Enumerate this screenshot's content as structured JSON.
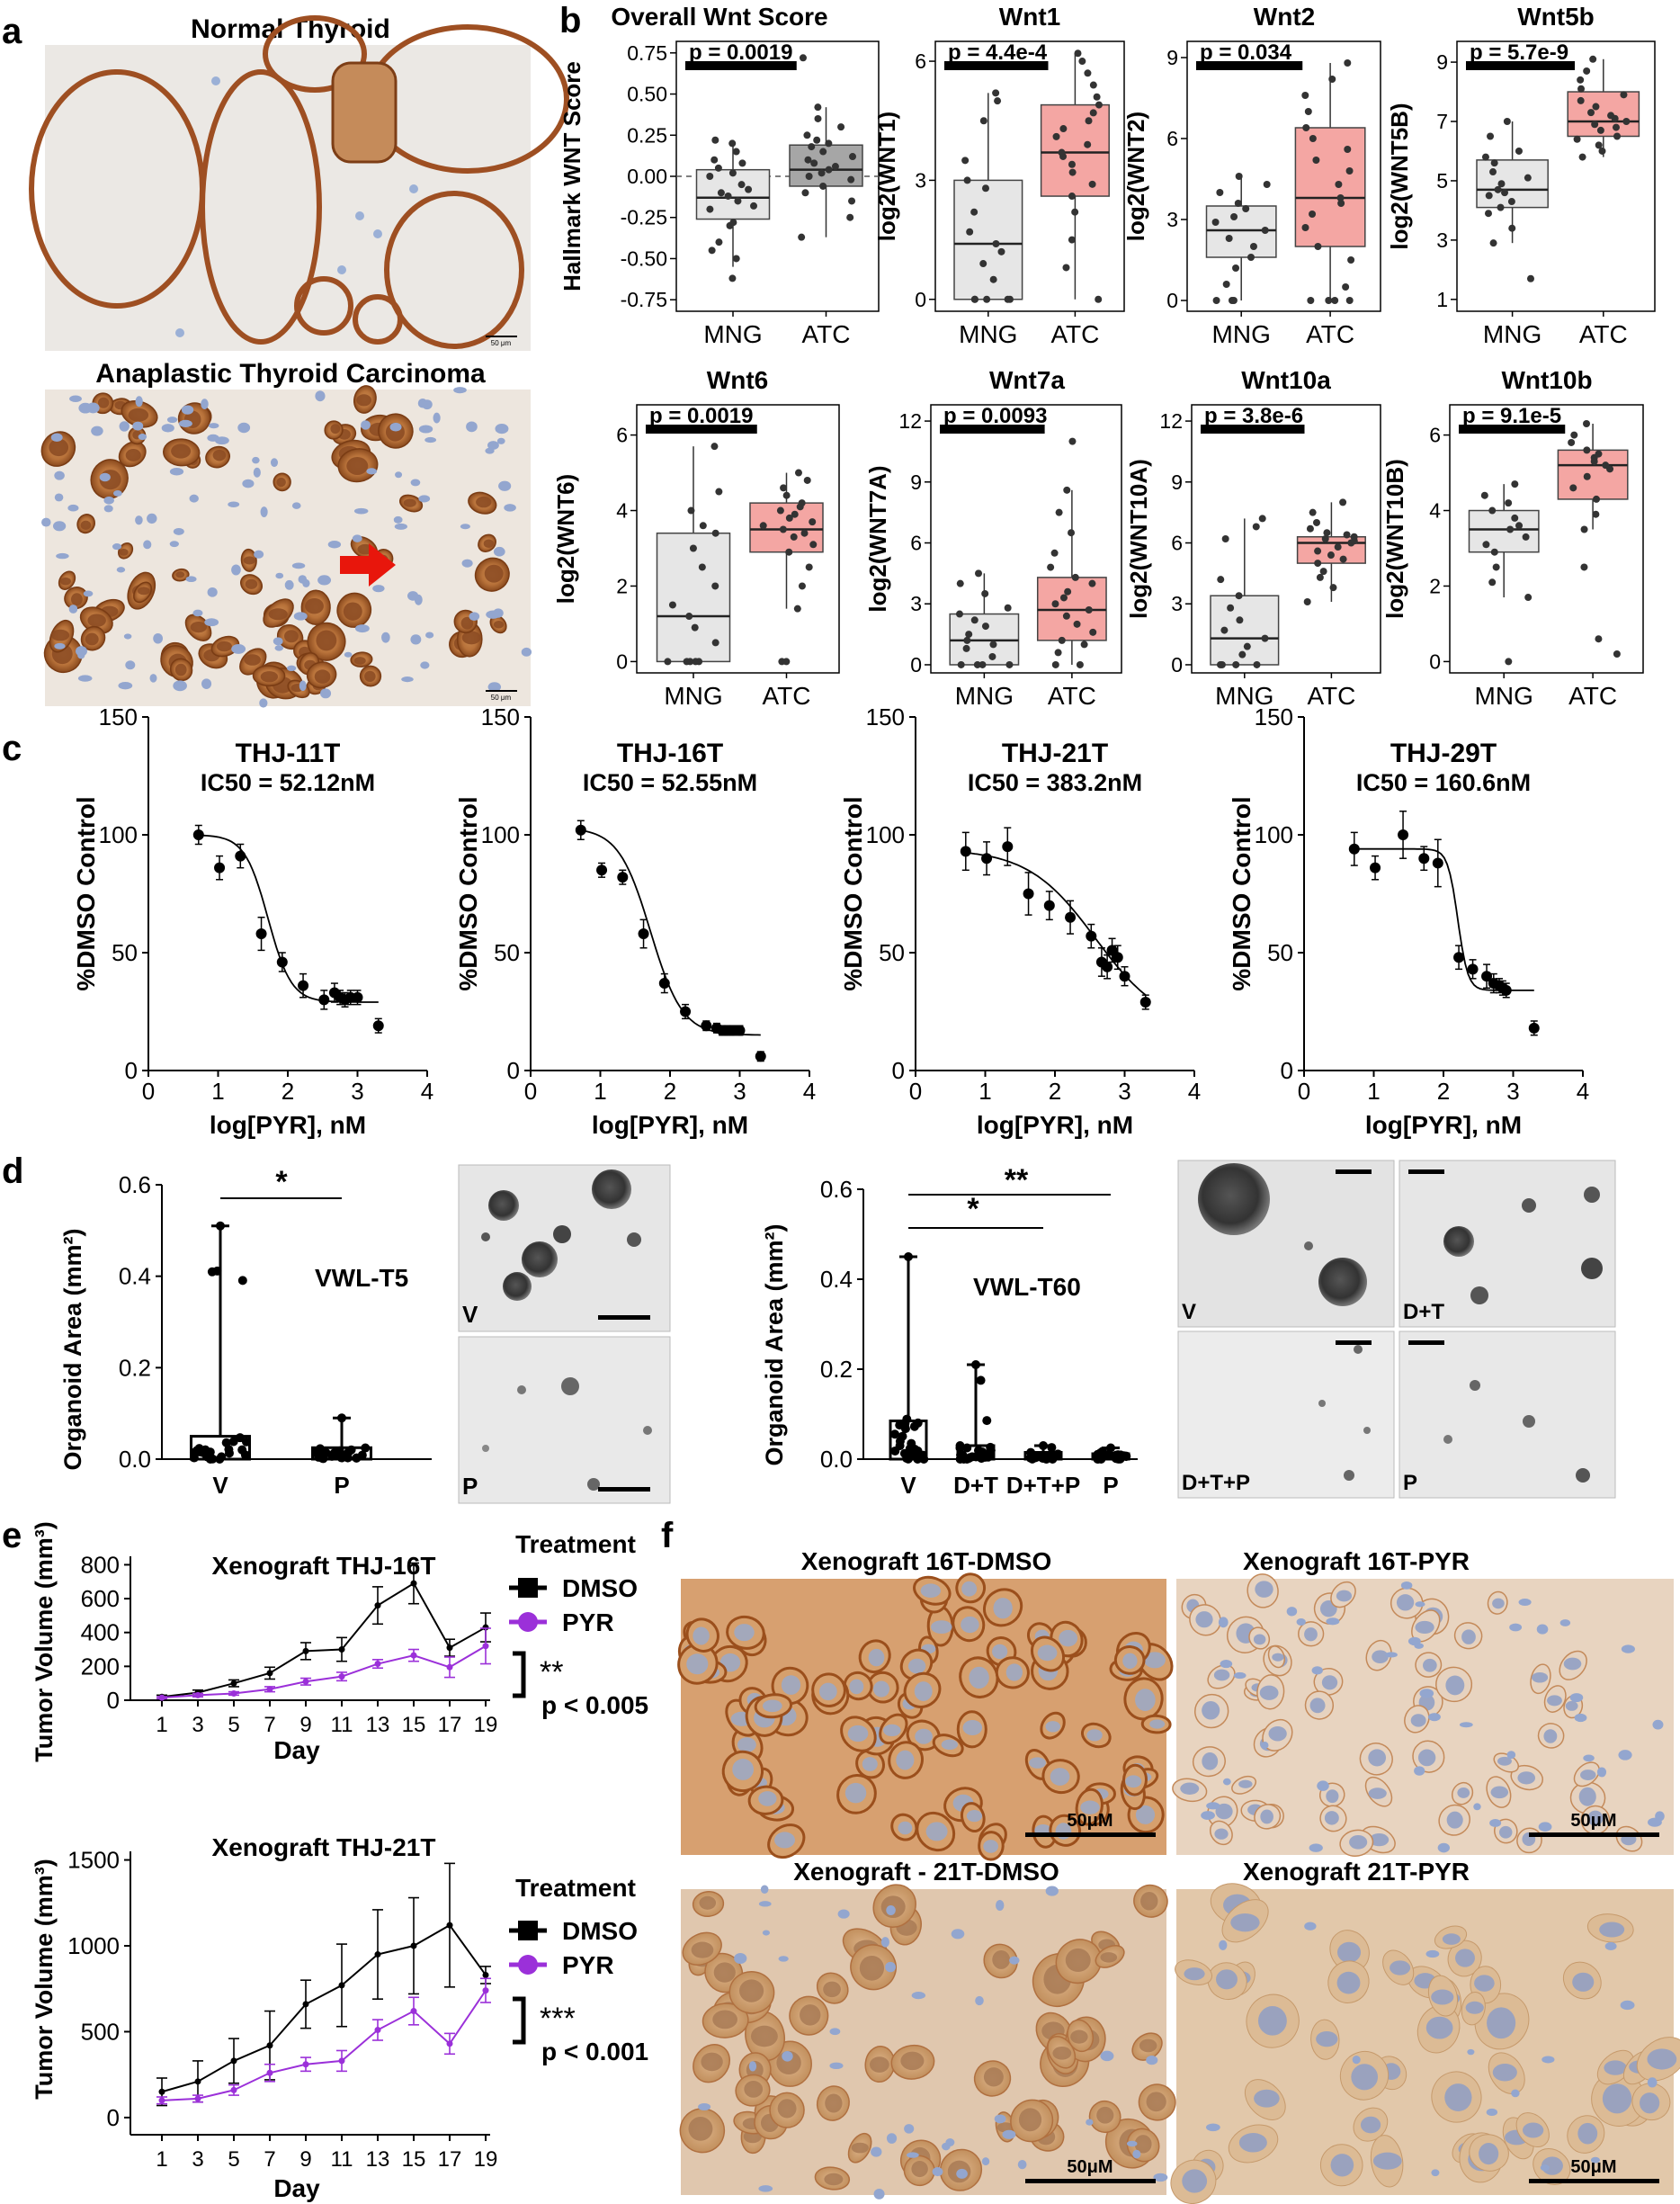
{
  "panels": {
    "a": "a",
    "b": "b",
    "c": "c",
    "d": "d",
    "e": "e",
    "f": "f"
  },
  "panel_a": {
    "top_title": "Normal Thyroid",
    "bottom_title": "Anaplastic Thyroid Carcinoma",
    "scale_top": "50 μm",
    "scale_bottom": "50 μm",
    "colors": {
      "stain": "#a0522d",
      "background": "#ede9e4",
      "nuclei": "#8fa2c8",
      "arrow": "#e8160c"
    }
  },
  "panel_b": {
    "groups": [
      "MNG",
      "ATC"
    ],
    "colors": {
      "mng_box": "#e6e6e6",
      "atc_box": "#f4a6a3",
      "overall_atc_box": "#a6a6a6",
      "title_red": "#c00000"
    }
  },
  "panel_c": {
    "xlabel": "log[PYR], nM",
    "ylabel": "%DMSO Control"
  },
  "panel_d": {
    "ylabel": "Organoid Area (mm²)",
    "left_label": "VWL-T5",
    "right_label": "VWL-T60",
    "left_categories": [
      "V",
      "P"
    ],
    "right_categories": [
      "V",
      "D+T",
      "D+T+P",
      "P"
    ],
    "sig_left": "*",
    "sig_right_1": "*",
    "sig_right_2": "**",
    "left_image_labels": [
      "V",
      "P"
    ],
    "right_image_labels": [
      "V",
      "D+T",
      "D+T+P",
      "P"
    ]
  },
  "panel_e": {
    "ylabel": "Tumor Volume (mm³)",
    "xlabel": "Day",
    "legend_title": "Treatment",
    "legend_items": [
      "DMSO",
      "PYR"
    ],
    "colors": {
      "DMSO": "#000000",
      "PYR": "#9b30d9"
    },
    "plot1": {
      "title": "Xenograft THJ-16T",
      "sig": "**",
      "p": "p < 0.005"
    },
    "plot2": {
      "title": "Xenograft THJ-21T",
      "sig": "***",
      "p": "p < 0.001"
    }
  },
  "panel_f": {
    "titles": [
      "Xenograft 16T-DMSO",
      "Xenograft 16T-PYR",
      "Xenograft - 21T-DMSO",
      "Xenograft 21T-PYR"
    ],
    "scale": "50μM"
  },
  "chart_data": [
    {
      "type": "box",
      "title": "Overall Wnt Score",
      "ylabel": "Hallmark WNT Score",
      "categories": [
        "MNG",
        "ATC"
      ],
      "ylim": [
        -0.82,
        0.82
      ],
      "yticks": [
        -0.75,
        -0.5,
        -0.25,
        0,
        0.25,
        0.5,
        0.75
      ],
      "yticklabels": [
        "-0.75",
        "-0.50",
        "-0.25",
        "0.00",
        "0.25",
        "0.50",
        "0.75"
      ],
      "p": "p = 0.0019",
      "dashed_zero": true,
      "boxes": [
        {
          "q1": -0.26,
          "med": -0.13,
          "q3": 0.04,
          "lo": -0.55,
          "hi": 0.22
        },
        {
          "q1": -0.06,
          "med": 0.04,
          "q3": 0.19,
          "lo": -0.37,
          "hi": 0.42
        }
      ],
      "points": [
        [
          -0.62,
          -0.5,
          -0.45,
          -0.4,
          -0.3,
          -0.28,
          -0.2,
          -0.18,
          -0.15,
          -0.12,
          -0.1,
          -0.08,
          -0.05,
          0.0,
          0.02,
          0.05,
          0.08,
          0.1,
          0.15,
          0.2,
          0.22
        ],
        [
          -0.37,
          -0.25,
          -0.15,
          -0.1,
          -0.06,
          -0.02,
          0.0,
          0.02,
          0.04,
          0.06,
          0.08,
          0.1,
          0.12,
          0.15,
          0.18,
          0.2,
          0.22,
          0.25,
          0.3,
          0.35,
          0.42,
          0.72
        ]
      ]
    },
    {
      "type": "box",
      "title": "Wnt1",
      "ylabel": "log2(WNT1)",
      "red_label": true,
      "categories": [
        "MNG",
        "ATC"
      ],
      "ylim": [
        -0.3,
        6.5
      ],
      "yticks": [
        0,
        3,
        6
      ],
      "p": "p = 4.4e-4",
      "boxes": [
        {
          "q1": 0.0,
          "med": 1.4,
          "q3": 3.0,
          "lo": 0,
          "hi": 5.2
        },
        {
          "q1": 2.6,
          "med": 3.7,
          "q3": 4.9,
          "lo": 0,
          "hi": 6.2
        }
      ],
      "points": [
        [
          0,
          0,
          0,
          0,
          0,
          0.5,
          0.9,
          1.2,
          1.4,
          1.7,
          2.2,
          2.8,
          3.0,
          3.5,
          4.5,
          5.0,
          5.2
        ],
        [
          0,
          0.8,
          1.5,
          2.2,
          2.6,
          2.9,
          3.2,
          3.4,
          3.6,
          3.7,
          3.9,
          4.1,
          4.3,
          4.5,
          4.7,
          4.9,
          5.1,
          5.4,
          5.7,
          6.0,
          6.2
        ]
      ]
    },
    {
      "type": "box",
      "title": "Wnt2",
      "ylabel": "log2(WNT2)",
      "red_label": true,
      "categories": [
        "MNG",
        "ATC"
      ],
      "ylim": [
        -0.4,
        9.6
      ],
      "yticks": [
        0,
        3,
        6,
        9
      ],
      "p": "p = 0.034",
      "boxes": [
        {
          "q1": 1.6,
          "med": 2.6,
          "q3": 3.5,
          "lo": 0,
          "hi": 4.6
        },
        {
          "q1": 2.0,
          "med": 3.8,
          "q3": 6.4,
          "lo": 0,
          "hi": 8.8
        }
      ],
      "points": [
        [
          0,
          0,
          0,
          0.6,
          1.2,
          1.6,
          2.0,
          2.3,
          2.6,
          2.9,
          3.1,
          3.4,
          3.6,
          4.0,
          4.3,
          4.6
        ],
        [
          0,
          0,
          0,
          0,
          0.5,
          1.5,
          2.0,
          2.7,
          3.2,
          3.6,
          3.8,
          4.3,
          4.8,
          5.2,
          5.6,
          6.0,
          6.4,
          7.0,
          7.6,
          8.2,
          8.8
        ]
      ]
    },
    {
      "type": "box",
      "title": "Wnt5b",
      "ylabel": "log2(WNT5B)",
      "red_label": true,
      "categories": [
        "MNG",
        "ATC"
      ],
      "ylim": [
        0.6,
        9.7
      ],
      "yticks": [
        1,
        3,
        5,
        7,
        9
      ],
      "p": "p = 5.7e-9",
      "boxes": [
        {
          "q1": 4.1,
          "med": 4.7,
          "q3": 5.7,
          "lo": 2.9,
          "hi": 7.0
        },
        {
          "q1": 6.5,
          "med": 7.0,
          "q3": 8.0,
          "lo": 5.8,
          "hi": 9.1
        }
      ],
      "points": [
        [
          1.7,
          2.9,
          3.4,
          3.9,
          4.1,
          4.3,
          4.5,
          4.6,
          4.7,
          4.9,
          5.1,
          5.3,
          5.6,
          5.8,
          6.0,
          6.5,
          7.0
        ],
        [
          5.8,
          6.0,
          6.2,
          6.4,
          6.5,
          6.7,
          6.8,
          6.9,
          7.0,
          7.1,
          7.2,
          7.3,
          7.5,
          7.7,
          7.9,
          8.1,
          8.4,
          8.7,
          9.1
        ]
      ]
    },
    {
      "type": "box",
      "title": "Wnt6",
      "ylabel": "log2(WNT6)",
      "red_label": true,
      "categories": [
        "MNG",
        "ATC"
      ],
      "ylim": [
        -0.3,
        6.8
      ],
      "yticks": [
        0,
        2,
        4,
        6
      ],
      "p": "p = 0.0019",
      "boxes": [
        {
          "q1": 0.0,
          "med": 1.2,
          "q3": 3.4,
          "lo": 0,
          "hi": 5.7
        },
        {
          "q1": 2.9,
          "med": 3.5,
          "q3": 4.2,
          "lo": 1.4,
          "hi": 5.0
        }
      ],
      "points": [
        [
          0,
          0,
          0,
          0,
          0,
          0.5,
          0.9,
          1.2,
          1.5,
          2.0,
          2.5,
          3.0,
          3.4,
          3.6,
          4.0,
          4.5,
          5.7
        ],
        [
          0,
          0,
          1.4,
          2.0,
          2.5,
          2.9,
          3.1,
          3.3,
          3.4,
          3.5,
          3.6,
          3.7,
          3.8,
          3.9,
          4.0,
          4.1,
          4.2,
          4.4,
          4.6,
          4.8,
          5.0
        ]
      ]
    },
    {
      "type": "box",
      "title": "Wnt7a",
      "ylabel": "log2(WNT7A)",
      "red_label": true,
      "categories": [
        "MNG",
        "ATC"
      ],
      "ylim": [
        -0.4,
        12.8
      ],
      "yticks": [
        0,
        3,
        6,
        9,
        12
      ],
      "p": "p = 0.0093",
      "boxes": [
        {
          "q1": 0.0,
          "med": 1.2,
          "q3": 2.5,
          "lo": 0,
          "hi": 4.5
        },
        {
          "q1": 1.2,
          "med": 2.7,
          "q3": 4.3,
          "lo": 0,
          "hi": 8.6
        }
      ],
      "points": [
        [
          0,
          0,
          0,
          0,
          0.4,
          0.8,
          1.0,
          1.2,
          1.5,
          1.9,
          2.2,
          2.5,
          2.8,
          3.5,
          4.0,
          4.5
        ],
        [
          0,
          0,
          0.6,
          1.0,
          1.2,
          1.6,
          2.0,
          2.4,
          2.7,
          3.0,
          3.3,
          3.6,
          4.0,
          4.3,
          4.8,
          5.5,
          6.5,
          7.5,
          8.6,
          11.0
        ]
      ]
    },
    {
      "type": "box",
      "title": "Wnt10a",
      "ylabel": "log2(WNT10A)",
      "red_label": true,
      "categories": [
        "MNG",
        "ATC"
      ],
      "ylim": [
        -0.4,
        12.8
      ],
      "yticks": [
        0,
        3,
        6,
        9,
        12
      ],
      "p": "p = 3.8e-6",
      "boxes": [
        {
          "q1": 0.0,
          "med": 1.3,
          "q3": 3.4,
          "lo": 0,
          "hi": 7.2
        },
        {
          "q1": 5.0,
          "med": 6.0,
          "q3": 6.3,
          "lo": 3.1,
          "hi": 8.0
        }
      ],
      "points": [
        [
          0,
          0,
          0,
          0,
          0.5,
          0.9,
          1.3,
          1.7,
          2.2,
          2.8,
          3.4,
          4.2,
          6.2,
          6.8,
          7.2
        ],
        [
          3.1,
          3.8,
          4.3,
          4.6,
          5.0,
          5.2,
          5.4,
          5.6,
          5.8,
          6.0,
          6.1,
          6.2,
          6.3,
          6.4,
          6.5,
          6.7,
          7.0,
          7.5,
          8.0
        ]
      ]
    },
    {
      "type": "box",
      "title": "Wnt10b",
      "ylabel": "log2(WNT10B)",
      "red_label": true,
      "categories": [
        "MNG",
        "ATC"
      ],
      "ylim": [
        -0.3,
        6.8
      ],
      "yticks": [
        0,
        2,
        4,
        6
      ],
      "p": "p = 9.1e-5",
      "boxes": [
        {
          "q1": 2.9,
          "med": 3.5,
          "q3": 4.0,
          "lo": 1.7,
          "hi": 4.7
        },
        {
          "q1": 4.3,
          "med": 5.2,
          "q3": 5.6,
          "lo": 3.5,
          "hi": 6.3
        }
      ],
      "points": [
        [
          0,
          1.7,
          2.1,
          2.5,
          2.9,
          3.1,
          3.3,
          3.5,
          3.6,
          3.8,
          4.0,
          4.2,
          4.4,
          4.7
        ],
        [
          0.2,
          0.6,
          2.5,
          3.5,
          3.9,
          4.3,
          4.6,
          4.9,
          5.1,
          5.2,
          5.3,
          5.4,
          5.5,
          5.6,
          5.8,
          6.0,
          6.3
        ]
      ]
    },
    {
      "type": "dose_response",
      "title": "THJ-11T",
      "ic50": "IC50 = 52.12nM",
      "xlim": [
        0,
        4
      ],
      "ylim": [
        0,
        150
      ],
      "xticks": [
        0,
        1,
        2,
        3,
        4
      ],
      "yticks": [
        0,
        50,
        100,
        150
      ],
      "top": 100,
      "bottom": 29,
      "logic50": 1.717,
      "hill": 2.6,
      "x": [
        0.72,
        1.02,
        1.32,
        1.62,
        1.92,
        2.22,
        2.52,
        2.67,
        2.75,
        2.82,
        2.9,
        3.0,
        3.3
      ],
      "y": [
        100,
        86,
        91,
        58,
        46,
        36,
        30,
        33,
        31,
        30,
        31,
        31,
        19
      ],
      "err": [
        4,
        5,
        5,
        7,
        4,
        5,
        4,
        4,
        3,
        3,
        3,
        3,
        3
      ]
    },
    {
      "type": "dose_response",
      "title": "THJ-16T",
      "ic50": "IC50 = 52.55nM",
      "xlim": [
        0,
        4
      ],
      "ylim": [
        0,
        150
      ],
      "xticks": [
        0,
        1,
        2,
        3,
        4
      ],
      "yticks": [
        0,
        50,
        100,
        150
      ],
      "top": 103,
      "bottom": 15,
      "logic50": 1.72,
      "hill": 1.9,
      "x": [
        0.72,
        1.02,
        1.32,
        1.62,
        1.92,
        2.22,
        2.52,
        2.67,
        2.75,
        2.82,
        2.9,
        3.0,
        3.3
      ],
      "y": [
        102,
        85,
        82,
        58,
        37,
        25,
        19,
        18,
        17,
        17,
        17,
        17,
        6
      ],
      "err": [
        4,
        3,
        3,
        6,
        4,
        3,
        2,
        2,
        2,
        2,
        2,
        2,
        2
      ]
    },
    {
      "type": "dose_response",
      "title": "THJ-21T",
      "ic50": "IC50 = 383.2nM",
      "xlim": [
        0,
        4
      ],
      "ylim": [
        0,
        150
      ],
      "xticks": [
        0,
        1,
        2,
        3,
        4
      ],
      "yticks": [
        0,
        50,
        100,
        150
      ],
      "top": 94,
      "bottom": 18,
      "logic50": 2.583,
      "hill": 0.9,
      "x": [
        0.72,
        1.02,
        1.32,
        1.62,
        1.92,
        2.22,
        2.52,
        2.67,
        2.75,
        2.82,
        2.9,
        3.0,
        3.3
      ],
      "y": [
        93,
        90,
        95,
        75,
        70,
        65,
        57,
        46,
        44,
        51,
        48,
        40,
        29
      ],
      "err": [
        8,
        7,
        8,
        9,
        6,
        7,
        5,
        6,
        5,
        5,
        5,
        4,
        3
      ]
    },
    {
      "type": "dose_response",
      "title": "THJ-29T",
      "ic50": "IC50 = 160.6nM",
      "xlim": [
        0,
        4
      ],
      "ylim": [
        0,
        150
      ],
      "xticks": [
        0,
        1,
        2,
        3,
        4
      ],
      "yticks": [
        0,
        50,
        100,
        150
      ],
      "top": 94,
      "bottom": 34,
      "logic50": 2.206,
      "hill": 6,
      "x": [
        0.72,
        1.02,
        1.42,
        1.72,
        1.92,
        2.22,
        2.42,
        2.62,
        2.72,
        2.8,
        2.85,
        2.9,
        3.3
      ],
      "y": [
        94,
        86,
        100,
        90,
        88,
        48,
        43,
        40,
        37,
        36,
        35,
        34,
        18
      ],
      "err": [
        7,
        5,
        10,
        5,
        10,
        5,
        4,
        5,
        4,
        3,
        3,
        3,
        3
      ]
    },
    {
      "type": "box_dot",
      "title": "VWL-T5",
      "ylabel": "Organoid Area (mm²)",
      "categories": [
        "V",
        "P"
      ],
      "ylim": [
        0,
        0.6
      ],
      "yticks": [
        0,
        0.2,
        0.4,
        0.6
      ],
      "yticklabels": [
        "0.0",
        "0.2",
        "0.4",
        "0.6"
      ],
      "boxes": [
        {
          "q1": 0.0,
          "med": 0.005,
          "q3": 0.05,
          "lo": 0,
          "hi": 0.51
        },
        {
          "q1": 0.0,
          "med": 0.01,
          "q3": 0.025,
          "lo": 0,
          "hi": 0.09
        }
      ]
    },
    {
      "type": "box_dot",
      "title": "VWL-T60",
      "ylabel": "Organoid Area (mm²)",
      "categories": [
        "V",
        "D+T",
        "D+T+P",
        "P"
      ],
      "ylim": [
        0,
        0.6
      ],
      "yticks": [
        0,
        0.2,
        0.4,
        0.6
      ],
      "yticklabels": [
        "0.0",
        "0.2",
        "0.4",
        "0.6"
      ],
      "boxes": [
        {
          "q1": 0.0,
          "med": 0.01,
          "q3": 0.085,
          "lo": 0,
          "hi": 0.45
        },
        {
          "q1": 0.0,
          "med": 0.01,
          "q3": 0.03,
          "lo": 0,
          "hi": 0.21
        },
        {
          "q1": 0.0,
          "med": 0.005,
          "q3": 0.015,
          "lo": 0,
          "hi": 0.03
        },
        {
          "q1": 0.0,
          "med": 0.005,
          "q3": 0.012,
          "lo": 0,
          "hi": 0.025
        }
      ]
    },
    {
      "type": "line",
      "title": "Xenograft THJ-16T",
      "xlabel": "Day",
      "ylabel": "Tumor Volume (mm³)",
      "ylim": [
        0,
        850
      ],
      "yticks": [
        0,
        200,
        400,
        600,
        800
      ],
      "x": [
        1,
        3,
        5,
        7,
        9,
        11,
        13,
        15,
        17,
        19
      ],
      "series": [
        {
          "name": "DMSO",
          "values": [
            20,
            45,
            100,
            160,
            290,
            300,
            560,
            690,
            310,
            430
          ],
          "err": [
            10,
            15,
            20,
            35,
            50,
            70,
            110,
            120,
            50,
            85
          ]
        },
        {
          "name": "PYR",
          "values": [
            15,
            30,
            40,
            65,
            110,
            140,
            215,
            265,
            195,
            320
          ],
          "err": [
            6,
            10,
            10,
            15,
            20,
            25,
            25,
            35,
            60,
            105
          ]
        }
      ]
    },
    {
      "type": "line",
      "title": "Xenograft THJ-21T",
      "xlabel": "Day",
      "ylabel": "Tumor Volume (mm³)",
      "ylim": [
        -100,
        1550
      ],
      "yticks": [
        0,
        500,
        1000,
        1500
      ],
      "x": [
        1,
        3,
        5,
        7,
        9,
        11,
        13,
        15,
        17,
        19
      ],
      "series": [
        {
          "name": "DMSO",
          "values": [
            150,
            210,
            330,
            420,
            660,
            770,
            950,
            1000,
            1120,
            830
          ],
          "err": [
            80,
            120,
            130,
            200,
            140,
            240,
            260,
            280,
            360,
            50
          ]
        },
        {
          "name": "PYR",
          "values": [
            100,
            110,
            160,
            260,
            310,
            330,
            510,
            620,
            430,
            740
          ],
          "err": [
            20,
            20,
            30,
            50,
            40,
            60,
            60,
            80,
            60,
            70
          ]
        }
      ]
    }
  ]
}
